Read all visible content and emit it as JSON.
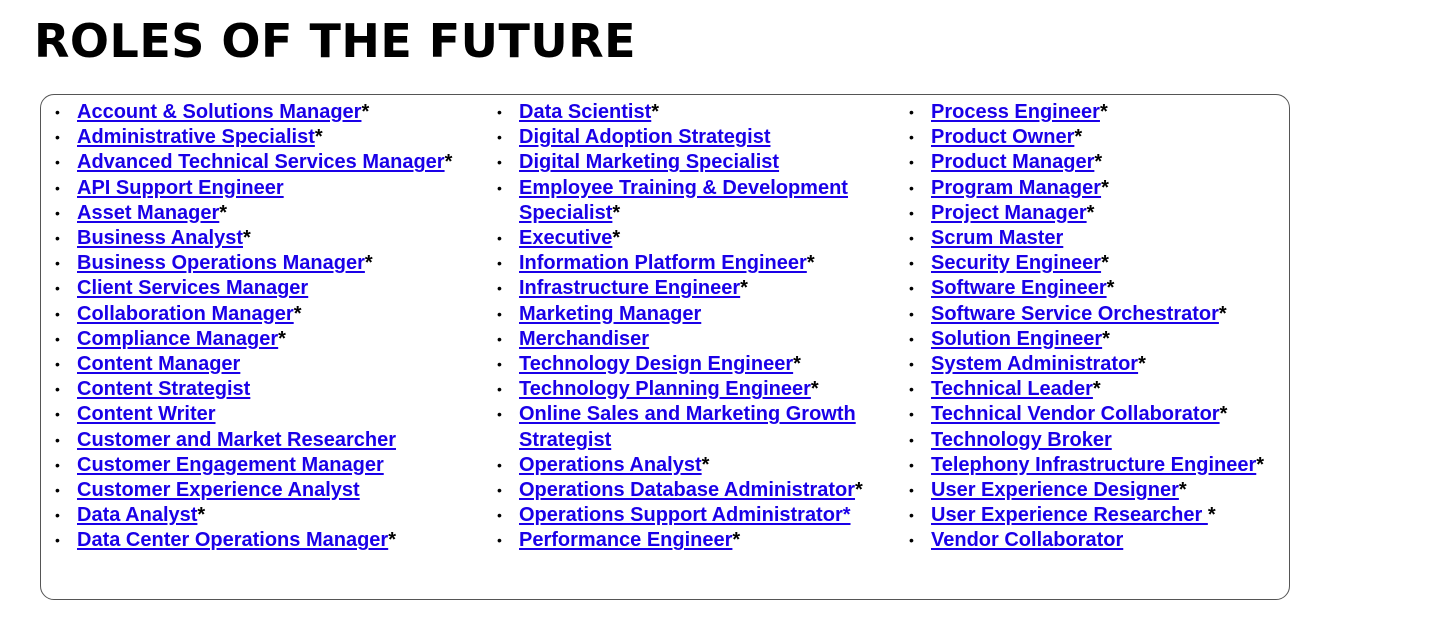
{
  "title": "ROLES OF THE FUTURE",
  "colors": {
    "link": "#1a00e8",
    "text": "#000000",
    "border": "#555555"
  },
  "columns": [
    {
      "items": [
        {
          "label": "Account & Solutions Manager",
          "suffix": "*"
        },
        {
          "label": "Administrative Specialist",
          "suffix": "*"
        },
        {
          "label": "Advanced Technical Services Manager",
          "suffix": "*"
        },
        {
          "label": "API Support Engineer",
          "suffix": ""
        },
        {
          "label": "Asset Manager",
          "suffix": "*"
        },
        {
          "label": "Business Analyst",
          "suffix": "*"
        },
        {
          "label": "Business Operations Manager",
          "suffix": "*"
        },
        {
          "label": "Client Services Manager",
          "suffix": ""
        },
        {
          "label": "Collaboration Manager",
          "suffix": "*"
        },
        {
          "label": "Compliance Manager",
          "suffix": "*"
        },
        {
          "label": "Content Manager",
          "suffix": ""
        },
        {
          "label": "Content Strategist",
          "suffix": ""
        },
        {
          "label": "Content Writer",
          "suffix": ""
        },
        {
          "label": "Customer and Market Researcher",
          "suffix": ""
        },
        {
          "label": "Customer Engagement Manager",
          "suffix": ""
        },
        {
          "label": "Customer Experience Analyst",
          "suffix": ""
        },
        {
          "label": "Data Analyst",
          "suffix": "*"
        },
        {
          "label": "Data Center Operations Manager",
          "suffix": "*"
        }
      ]
    },
    {
      "items": [
        {
          "label": "Data Scientist",
          "suffix": "*"
        },
        {
          "label": "Digital Adoption Strategist",
          "suffix": ""
        },
        {
          "label": "Digital Marketing Specialist",
          "suffix": ""
        },
        {
          "label": "Employee Training & Development Specialist",
          "suffix": "*"
        },
        {
          "label": "Executive",
          "suffix": "*"
        },
        {
          "label": "Information Platform Engineer",
          "suffix": "*"
        },
        {
          "label": "Infrastructure Engineer",
          "suffix": "*"
        },
        {
          "label": "Marketing Manager",
          "suffix": ""
        },
        {
          "label": "Merchandiser",
          "suffix": ""
        },
        {
          "label": "Technology Design Engineer",
          "suffix": "*"
        },
        {
          "label": "Technology Planning Engineer",
          "suffix": "*"
        },
        {
          "label": "Online Sales and Marketing Growth Strategist",
          "suffix": ""
        },
        {
          "label": "Operations Analyst",
          "suffix": "*"
        },
        {
          "label": "Operations Database Administrator",
          "suffix": "*"
        },
        {
          "label": "Operations Support Administrator*",
          "suffix": ""
        },
        {
          "label": "Performance Engineer",
          "suffix": "*"
        }
      ]
    },
    {
      "items": [
        {
          "label": "Process Engineer",
          "suffix": "*"
        },
        {
          "label": "Product Owner",
          "suffix": "*"
        },
        {
          "label": "Product Manager",
          "suffix": "*"
        },
        {
          "label": "Program Manager",
          "suffix": "*"
        },
        {
          "label": "Project Manager",
          "suffix": "*"
        },
        {
          "label": "Scrum Master",
          "suffix": ""
        },
        {
          "label": "Security Engineer",
          "suffix": "*"
        },
        {
          "label": "Software Engineer",
          "suffix": "*"
        },
        {
          "label": "Software Service Orchestrator",
          "suffix": "*"
        },
        {
          "label": "Solution Engineer",
          "suffix": "*"
        },
        {
          "label": "System Administrator",
          "suffix": "*"
        },
        {
          "label": "Technical Leader",
          "suffix": "*"
        },
        {
          "label": "Technical Vendor Collaborator",
          "suffix": "*"
        },
        {
          "label": "Technology Broker",
          "suffix": ""
        },
        {
          "label": "Telephony Infrastructure Engineer",
          "suffix": "*"
        },
        {
          "label": "User Experience Designer",
          "suffix": "*"
        },
        {
          "label": "User Experience Researcher ",
          "suffix": " *"
        },
        {
          "label": "Vendor Collaborator",
          "suffix": ""
        }
      ]
    }
  ]
}
